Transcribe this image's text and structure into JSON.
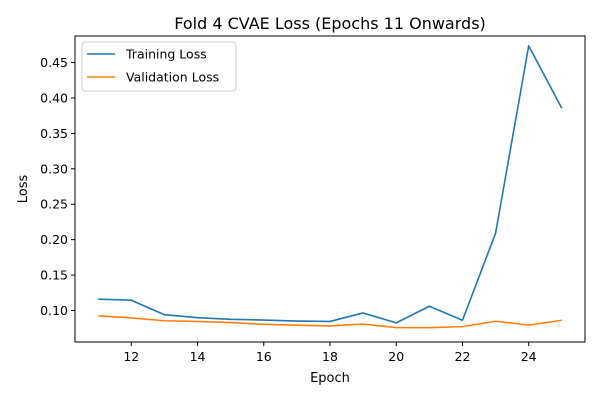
{
  "chart_data": {
    "type": "line",
    "title": "Fold 4 CVAE Loss (Epochs 11 Onwards)",
    "xlabel": "Epoch",
    "ylabel": "Loss",
    "x": [
      11,
      12,
      13,
      14,
      15,
      16,
      17,
      18,
      19,
      20,
      21,
      22,
      23,
      24,
      25
    ],
    "xlim": [
      10.3,
      25.7
    ],
    "ylim": [
      0.0555,
      0.4875
    ],
    "xticks": [
      12,
      14,
      16,
      18,
      20,
      22,
      24
    ],
    "xtick_labels": [
      "12",
      "14",
      "16",
      "18",
      "20",
      "22",
      "24"
    ],
    "yticks": [
      0.1,
      0.15,
      0.2,
      0.25,
      0.3,
      0.35,
      0.4,
      0.45
    ],
    "ytick_labels": [
      "0.10",
      "0.15",
      "0.20",
      "0.25",
      "0.30",
      "0.35",
      "0.40",
      "0.45"
    ],
    "grid": false,
    "legend_position": "top-left",
    "series": [
      {
        "name": "Training Loss",
        "color": "#1f77b4",
        "values": [
          0.116,
          0.1145,
          0.094,
          0.0898,
          0.0875,
          0.0865,
          0.085,
          0.0845,
          0.0965,
          0.0825,
          0.106,
          0.0862,
          0.209,
          0.4735,
          0.3855
        ]
      },
      {
        "name": "Validation Loss",
        "color": "#ff7f0e",
        "values": [
          0.0925,
          0.0895,
          0.0855,
          0.0845,
          0.083,
          0.0805,
          0.0793,
          0.0782,
          0.0808,
          0.0758,
          0.0757,
          0.0772,
          0.0848,
          0.0793,
          0.0862
        ]
      }
    ]
  }
}
